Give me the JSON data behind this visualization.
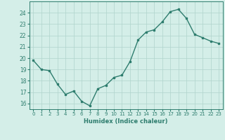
{
  "x": [
    0,
    1,
    2,
    3,
    4,
    5,
    6,
    7,
    8,
    9,
    10,
    11,
    12,
    13,
    14,
    15,
    16,
    17,
    18,
    19,
    20,
    21,
    22,
    23
  ],
  "y": [
    19.8,
    19.0,
    18.9,
    17.7,
    16.8,
    17.1,
    16.2,
    15.8,
    17.3,
    17.6,
    18.3,
    18.5,
    19.7,
    21.6,
    22.3,
    22.5,
    23.2,
    24.1,
    24.3,
    23.5,
    22.1,
    21.8,
    21.5,
    21.3
  ],
  "xlabel": "Humidex (Indice chaleur)",
  "ylim": [
    15.5,
    25.0
  ],
  "xlim": [
    -0.5,
    23.5
  ],
  "yticks": [
    16,
    17,
    18,
    19,
    20,
    21,
    22,
    23,
    24
  ],
  "xticks": [
    0,
    1,
    2,
    3,
    4,
    5,
    6,
    7,
    8,
    9,
    10,
    11,
    12,
    13,
    14,
    15,
    16,
    17,
    18,
    19,
    20,
    21,
    22,
    23
  ],
  "line_color": "#2e7d6e",
  "marker_color": "#2e7d6e",
  "bg_color": "#d4eee8",
  "grid_color": "#b0d4cc",
  "axis_color": "#2e7d6e",
  "label_color": "#2e7d6e",
  "xlabel_fontsize": 6.0,
  "ytick_fontsize": 5.5,
  "xtick_fontsize": 5.0
}
